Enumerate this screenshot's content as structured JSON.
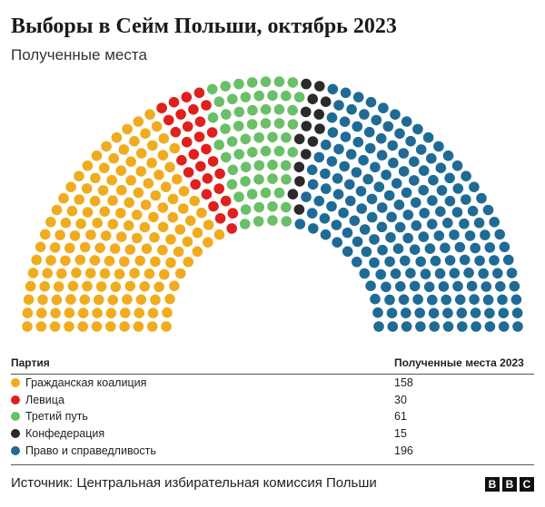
{
  "title": "Выборы в Сейм Польши, октябрь 2023",
  "subtitle": "Полученные места",
  "table": {
    "col_party": "Партия",
    "col_seats": "Полученные места 2023"
  },
  "chart_data": {
    "type": "parliament",
    "total_seats": 460,
    "series": [
      {
        "name": "Гражданская коалиция",
        "seats": 158,
        "color": "#f0ac1e"
      },
      {
        "name": "Левица",
        "seats": 30,
        "color": "#e0201c"
      },
      {
        "name": "Третий путь",
        "seats": 61,
        "color": "#6abf68"
      },
      {
        "name": "Конфедерация",
        "seats": 15,
        "color": "#2a2a2a"
      },
      {
        "name": "Право и справедливость",
        "seats": 196,
        "color": "#1f6b96"
      }
    ]
  },
  "footer": {
    "source": "Источник: Центральная избирательная комиссия Польши",
    "logo_letters": [
      "B",
      "B",
      "C"
    ]
  }
}
